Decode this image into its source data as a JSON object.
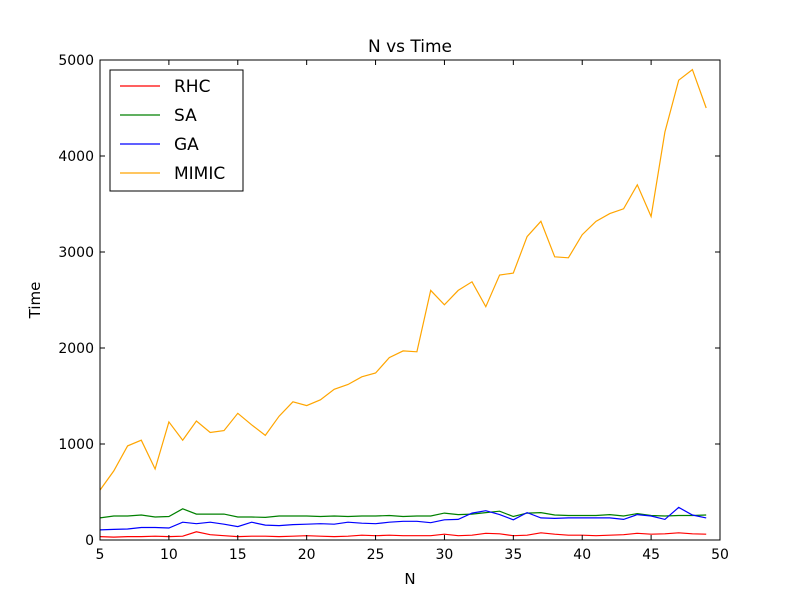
{
  "chart_data": {
    "type": "line",
    "title": "N vs Time",
    "xlabel": "N",
    "ylabel": "Time",
    "xlim": [
      5,
      50
    ],
    "ylim": [
      0,
      5000
    ],
    "xticks": [
      5,
      10,
      15,
      20,
      25,
      30,
      35,
      40,
      45,
      50
    ],
    "yticks": [
      0,
      1000,
      2000,
      3000,
      4000,
      5000
    ],
    "grid": false,
    "legend_position": "top-left",
    "x": [
      5,
      6,
      7,
      8,
      9,
      10,
      11,
      12,
      13,
      14,
      15,
      16,
      17,
      18,
      19,
      20,
      21,
      22,
      23,
      24,
      25,
      26,
      27,
      28,
      29,
      30,
      31,
      32,
      33,
      34,
      35,
      36,
      37,
      38,
      39,
      40,
      41,
      42,
      43,
      44,
      45,
      46,
      47,
      48,
      49
    ],
    "series": [
      {
        "name": "RHC",
        "color": "#ff0000",
        "values": [
          35,
          30,
          35,
          35,
          40,
          35,
          40,
          85,
          55,
          45,
          35,
          40,
          40,
          35,
          40,
          45,
          40,
          35,
          40,
          50,
          45,
          50,
          45,
          45,
          45,
          60,
          45,
          50,
          70,
          65,
          45,
          50,
          75,
          60,
          50,
          50,
          45,
          50,
          55,
          70,
          60,
          65,
          75,
          65,
          60
        ]
      },
      {
        "name": "SA",
        "color": "#008000",
        "values": [
          230,
          250,
          250,
          260,
          240,
          245,
          325,
          270,
          270,
          270,
          240,
          240,
          235,
          250,
          250,
          250,
          245,
          250,
          245,
          250,
          250,
          255,
          245,
          250,
          250,
          280,
          265,
          270,
          285,
          300,
          245,
          280,
          285,
          260,
          255,
          255,
          255,
          265,
          250,
          275,
          255,
          250,
          255,
          255,
          260
        ]
      },
      {
        "name": "GA",
        "color": "#0000ff",
        "values": [
          105,
          110,
          115,
          130,
          130,
          125,
          185,
          170,
          185,
          165,
          140,
          185,
          155,
          150,
          160,
          165,
          170,
          165,
          185,
          175,
          170,
          185,
          195,
          195,
          180,
          210,
          215,
          280,
          305,
          265,
          210,
          285,
          230,
          225,
          230,
          230,
          230,
          230,
          215,
          265,
          250,
          215,
          340,
          260,
          230
        ]
      },
      {
        "name": "MIMIC",
        "color": "#ffa500",
        "values": [
          520,
          720,
          980,
          1040,
          740,
          1230,
          1040,
          1240,
          1120,
          1140,
          1320,
          1200,
          1090,
          1290,
          1440,
          1400,
          1460,
          1570,
          1620,
          1700,
          1740,
          1900,
          1970,
          1960,
          2600,
          2450,
          2600,
          2690,
          2430,
          2760,
          2780,
          3160,
          3320,
          2950,
          2940,
          3180,
          3320,
          3400,
          3450,
          3700,
          3370,
          4250,
          4790,
          4900,
          4500
        ]
      }
    ]
  }
}
